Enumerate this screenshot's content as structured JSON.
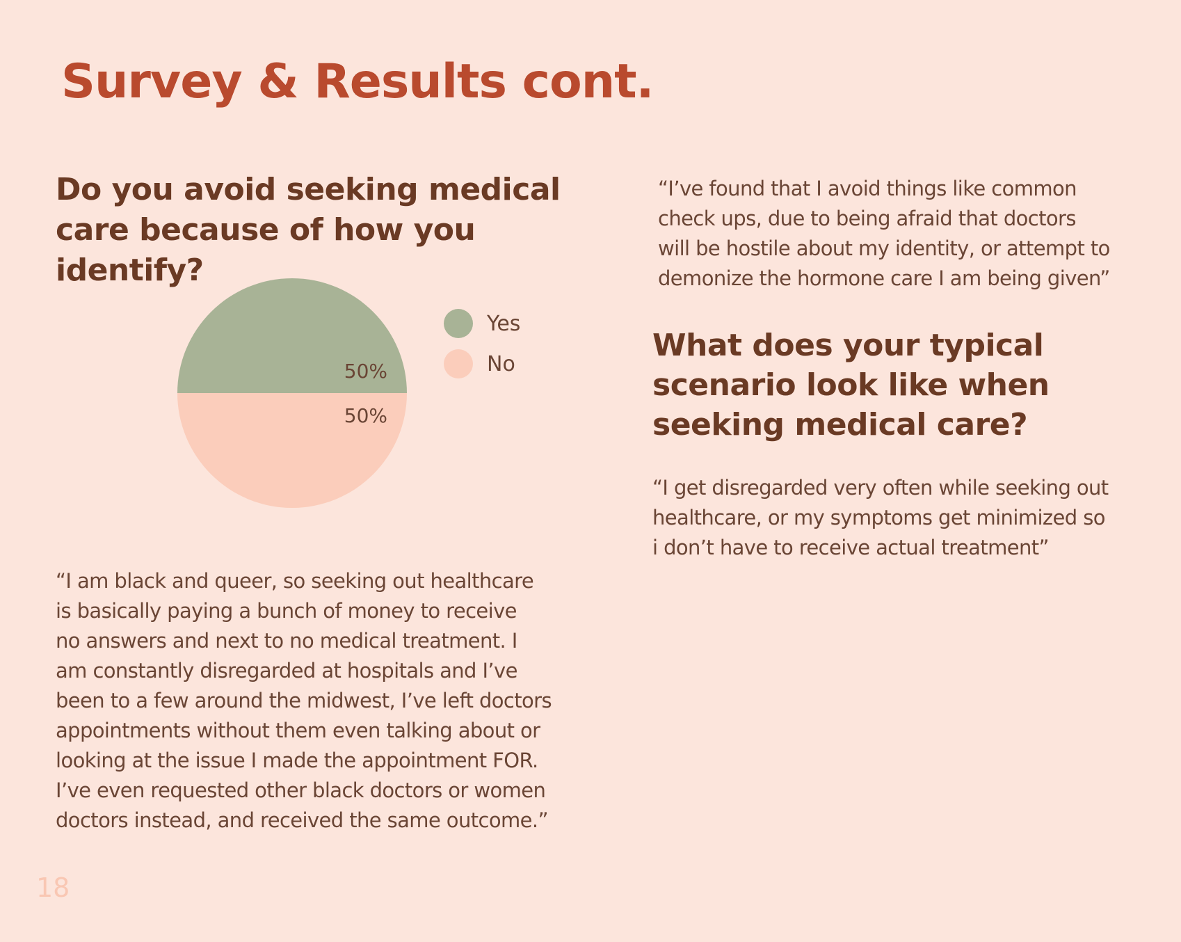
{
  "page": {
    "title": "Survey & Results cont.",
    "number": "18"
  },
  "question1": {
    "line1": "Do you avoid seeking medical",
    "line2": "care because of how you identify?"
  },
  "chart_data": {
    "type": "pie",
    "categories": [
      "Yes",
      "No"
    ],
    "values": [
      50,
      50
    ],
    "labels": [
      "50%",
      "50%"
    ],
    "colors": [
      "#a8b396",
      "#fbcdbb"
    ],
    "legend": "right"
  },
  "quote_left": {
    "lines": [
      "“I am black and queer, so seeking out healthcare",
      "is basically paying a bunch of money to receive",
      "no answers and next to no medical treatment. I",
      "am constantly disregarded at hospitals and I’ve",
      "been to a few around the midwest, I’ve left doctors",
      "appointments without them even talking about or",
      "looking at the issue I made the appointment FOR.",
      "I’ve even requested other black doctors or women",
      "doctors instead, and received the same outcome.”"
    ]
  },
  "quote_top": {
    "lines": [
      "“I’ve found that I avoid things like common",
      "check ups, due to being afraid that doctors",
      "will be hostile about my identity, or attempt to",
      "demonize the hormone care I am being given”"
    ]
  },
  "question2": {
    "line1": "What does your typical",
    "line2": "scenario look like when",
    "line3": "seeking medical care?"
  },
  "quote_scenario": {
    "lines": [
      "“I get disregarded very often while seeking out",
      "healthcare, or my symptoms get minimized so",
      "i don’t have to receive actual treatment”"
    ]
  }
}
